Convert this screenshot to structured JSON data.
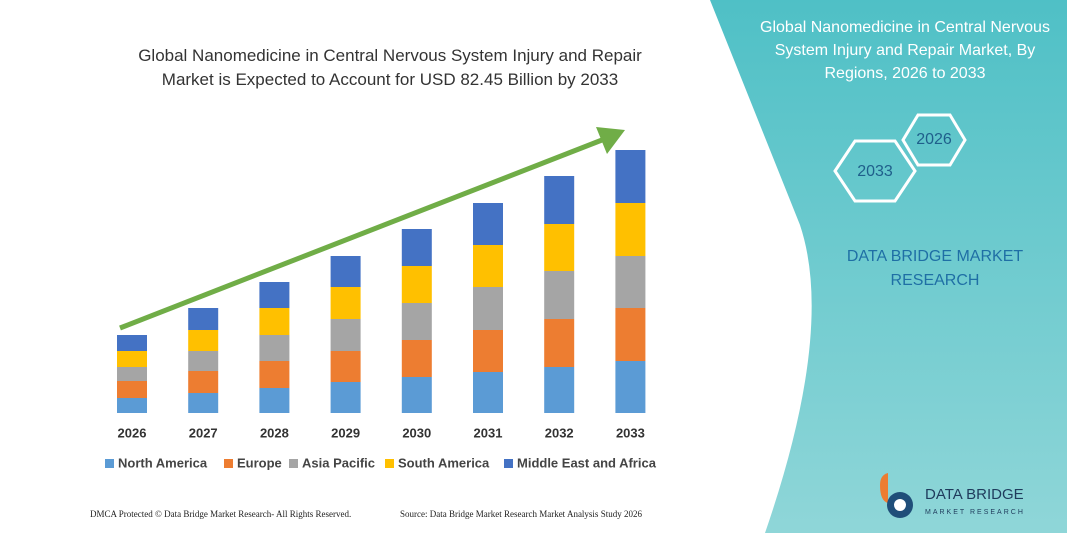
{
  "chart_data": {
    "type": "stacked_bar",
    "title": "Global Nanomedicine in Central Nervous System Injury and Repair Market is Expected to Account for USD 82.45 Billion by 2033",
    "categories": [
      "2026",
      "2027",
      "2028",
      "2029",
      "2030",
      "2031",
      "2032",
      "2033"
    ],
    "series": [
      {
        "name": "North America",
        "color": "#5b9bd5",
        "values": [
          15,
          20,
          25,
          31,
          36,
          41,
          46,
          52
        ]
      },
      {
        "name": "Europe",
        "color": "#ed7d31",
        "values": [
          17,
          22,
          27,
          31,
          37,
          42,
          48,
          53
        ]
      },
      {
        "name": "Asia Pacific",
        "color": "#a5a5a5",
        "values": [
          14,
          20,
          26,
          32,
          37,
          43,
          48,
          52
        ]
      },
      {
        "name": "South America",
        "color": "#ffc000",
        "values": [
          16,
          21,
          27,
          32,
          37,
          42,
          47,
          53
        ]
      },
      {
        "name": "Middle East and Africa",
        "color": "#4472c4",
        "values": [
          16,
          22,
          26,
          31,
          37,
          42,
          48,
          53
        ]
      }
    ]
  },
  "side_panel": {
    "title": "Global Nanomedicine in Central Nervous System Injury and Repair Market, By Regions, 2026 to 2033",
    "hexagons": [
      "2026",
      "2033"
    ],
    "brand": "DATA BRIDGE MARKET RESEARCH"
  },
  "logo": {
    "name": "DATA BRIDGE",
    "tagline": "MARKET RESEARCH"
  },
  "footer": {
    "left": "DMCA Protected © Data Bridge Market Research- All Rights Reserved.",
    "right": "Source: Data Bridge Market Research Market Analysis Study 2026"
  }
}
